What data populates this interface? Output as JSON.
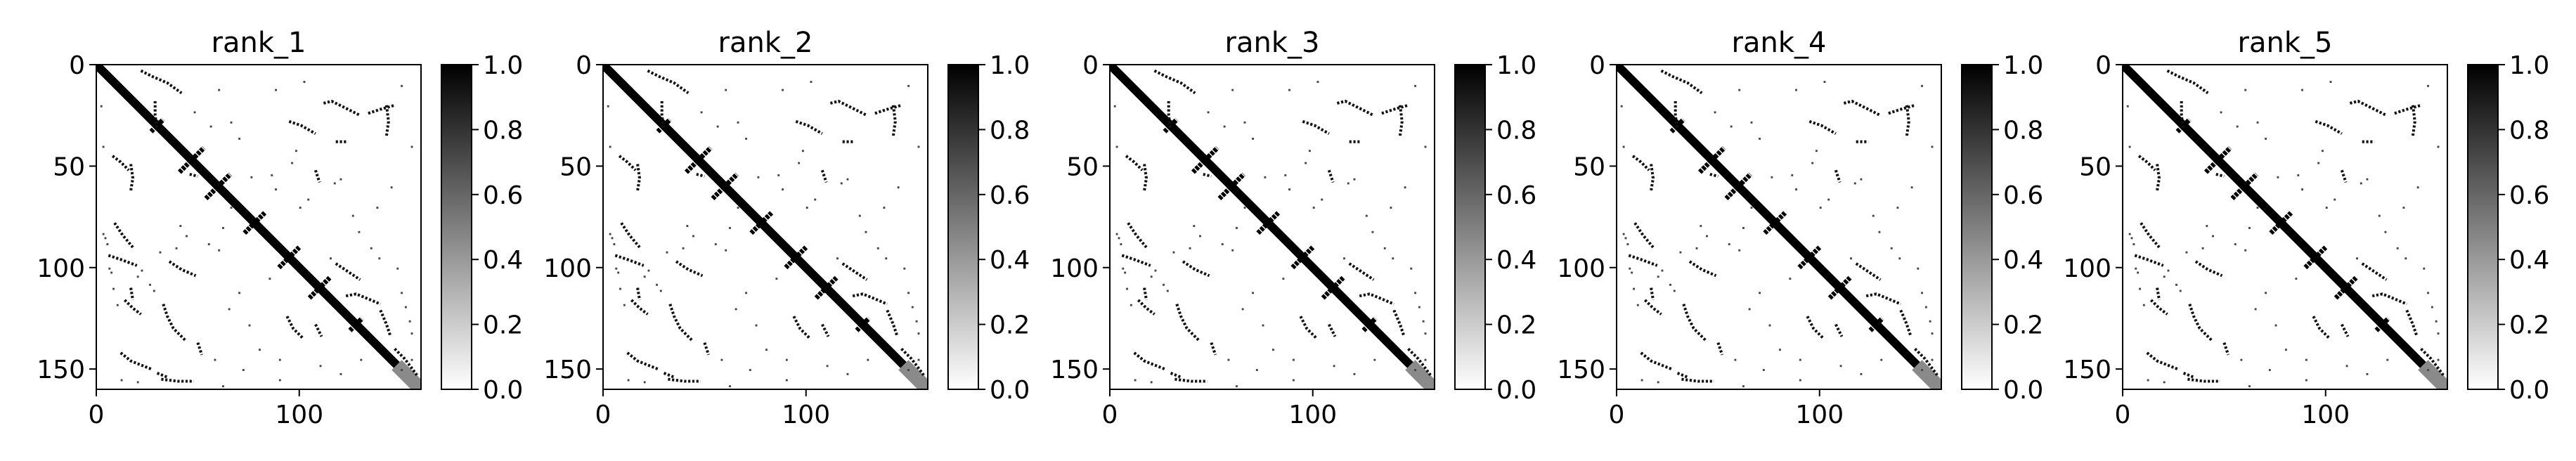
{
  "chart_data": [
    {
      "type": "heatmap",
      "title": "rank_1",
      "matrix_size": 160,
      "xlim": [
        0,
        160
      ],
      "ylim": [
        160,
        0
      ],
      "x_ticks": [
        0,
        100
      ],
      "y_ticks": [
        0,
        50,
        100,
        150
      ],
      "colormap": "gray_r",
      "vmin": 0.0,
      "vmax": 1.0,
      "colorbar_ticks": [
        "0.0",
        "0.2",
        "0.4",
        "0.6",
        "0.8",
        "1.0"
      ]
    },
    {
      "type": "heatmap",
      "title": "rank_2",
      "matrix_size": 160,
      "xlim": [
        0,
        160
      ],
      "ylim": [
        160,
        0
      ],
      "x_ticks": [
        0,
        100
      ],
      "y_ticks": [
        0,
        50,
        100,
        150
      ],
      "colormap": "gray_r",
      "vmin": 0.0,
      "vmax": 1.0,
      "colorbar_ticks": [
        "0.0",
        "0.2",
        "0.4",
        "0.6",
        "0.8",
        "1.0"
      ]
    },
    {
      "type": "heatmap",
      "title": "rank_3",
      "matrix_size": 160,
      "xlim": [
        0,
        160
      ],
      "ylim": [
        160,
        0
      ],
      "x_ticks": [
        0,
        100
      ],
      "y_ticks": [
        0,
        50,
        100,
        150
      ],
      "colormap": "gray_r",
      "vmin": 0.0,
      "vmax": 1.0,
      "colorbar_ticks": [
        "0.0",
        "0.2",
        "0.4",
        "0.6",
        "0.8",
        "1.0"
      ]
    },
    {
      "type": "heatmap",
      "title": "rank_4",
      "matrix_size": 160,
      "xlim": [
        0,
        160
      ],
      "ylim": [
        160,
        0
      ],
      "x_ticks": [
        0,
        100
      ],
      "y_ticks": [
        0,
        50,
        100,
        150
      ],
      "colormap": "gray_r",
      "vmin": 0.0,
      "vmax": 1.0,
      "colorbar_ticks": [
        "0.0",
        "0.2",
        "0.4",
        "0.6",
        "0.8",
        "1.0"
      ]
    },
    {
      "type": "heatmap",
      "title": "rank_5",
      "matrix_size": 160,
      "xlim": [
        0,
        160
      ],
      "ylim": [
        160,
        0
      ],
      "x_ticks": [
        0,
        100
      ],
      "y_ticks": [
        0,
        50,
        100,
        150
      ],
      "colormap": "gray_r",
      "vmin": 0.0,
      "vmax": 1.0,
      "colorbar_ticks": [
        "0.0",
        "0.2",
        "0.4",
        "0.6",
        "0.8",
        "1.0"
      ]
    }
  ],
  "contact_features": {
    "diagonal_band": {
      "from": 0,
      "to": 160
    },
    "antiparallel_arms": [
      {
        "center": 30,
        "length": 6
      },
      {
        "center": 47,
        "length": 12
      },
      {
        "center": 60,
        "length": 12
      },
      {
        "center": 78,
        "length": 10
      },
      {
        "center": 95,
        "length": 10
      },
      {
        "center": 110,
        "length": 10
      },
      {
        "center": 128,
        "length": 6
      }
    ],
    "off_diagonal_paths": [
      [
        [
          22,
          3
        ],
        [
          28,
          6
        ],
        [
          35,
          9
        ],
        [
          42,
          14
        ]
      ],
      [
        [
          29,
          18
        ],
        [
          29,
          25
        ],
        [
          30,
          32
        ]
      ],
      [
        [
          112,
          19
        ],
        [
          116,
          18
        ],
        [
          122,
          21
        ],
        [
          130,
          25
        ]
      ],
      [
        [
          134,
          24
        ],
        [
          140,
          22
        ],
        [
          147,
          20
        ]
      ],
      [
        [
          143,
          20
        ],
        [
          144,
          28
        ],
        [
          143,
          35
        ]
      ],
      [
        [
          95,
          28
        ],
        [
          101,
          30
        ],
        [
          108,
          34
        ]
      ],
      [
        [
          118,
          38
        ],
        [
          124,
          38
        ]
      ],
      [
        [
          8,
          45
        ],
        [
          12,
          48
        ],
        [
          16,
          52
        ]
      ],
      [
        [
          17,
          49
        ],
        [
          18,
          56
        ],
        [
          17,
          62
        ]
      ],
      [
        [
          9,
          78
        ],
        [
          13,
          84
        ],
        [
          18,
          90
        ]
      ],
      [
        [
          108,
          52
        ],
        [
          110,
          58
        ]
      ],
      [
        [
          46,
          54
        ],
        [
          50,
          55
        ]
      ],
      [
        [
          6,
          94
        ],
        [
          12,
          96
        ],
        [
          20,
          99
        ]
      ],
      [
        [
          36,
          97
        ],
        [
          42,
          101
        ],
        [
          49,
          104
        ]
      ],
      [
        [
          14,
          116
        ],
        [
          18,
          120
        ],
        [
          22,
          123
        ]
      ],
      [
        [
          17,
          110
        ],
        [
          18,
          116
        ]
      ],
      [
        [
          33,
          118
        ],
        [
          35,
          124
        ],
        [
          38,
          130
        ],
        [
          44,
          136
        ]
      ],
      [
        [
          12,
          142
        ],
        [
          17,
          146
        ],
        [
          22,
          148
        ],
        [
          27,
          150
        ]
      ],
      [
        [
          50,
          137
        ],
        [
          52,
          143
        ]
      ],
      [
        [
          94,
          124
        ],
        [
          97,
          130
        ],
        [
          102,
          135
        ]
      ],
      [
        [
          108,
          128
        ],
        [
          111,
          134
        ]
      ],
      [
        [
          123,
          114
        ],
        [
          128,
          113
        ],
        [
          133,
          115
        ],
        [
          140,
          118
        ]
      ],
      [
        [
          118,
          98
        ],
        [
          124,
          102
        ],
        [
          130,
          106
        ]
      ],
      [
        [
          140,
          121
        ],
        [
          143,
          128
        ],
        [
          145,
          134
        ]
      ],
      [
        [
          32,
          155
        ],
        [
          40,
          156
        ],
        [
          48,
          156
        ]
      ],
      [
        [
          30,
          152
        ],
        [
          35,
          154
        ]
      ],
      [
        [
          147,
          140
        ],
        [
          152,
          145
        ],
        [
          158,
          153
        ]
      ]
    ],
    "scatter_points": [
      [
        3,
        83
      ],
      [
        4,
        85
      ],
      [
        5,
        88
      ],
      [
        6,
        100
      ],
      [
        7,
        102
      ],
      [
        8,
        110
      ],
      [
        10,
        118
      ],
      [
        20,
        104
      ],
      [
        22,
        101
      ],
      [
        26,
        108
      ],
      [
        28,
        111
      ],
      [
        31,
        92
      ],
      [
        39,
        90
      ],
      [
        41,
        79
      ],
      [
        44,
        84
      ],
      [
        55,
        88
      ],
      [
        60,
        91
      ],
      [
        62,
        80
      ],
      [
        66,
        70
      ],
      [
        76,
        55
      ],
      [
        86,
        54
      ],
      [
        88,
        61
      ],
      [
        100,
        70
      ],
      [
        104,
        66
      ],
      [
        117,
        58
      ],
      [
        120,
        56
      ],
      [
        126,
        74
      ],
      [
        129,
        82
      ],
      [
        135,
        90
      ],
      [
        139,
        95
      ],
      [
        148,
        100
      ],
      [
        150,
        112
      ],
      [
        152,
        119
      ],
      [
        154,
        126
      ],
      [
        155,
        132
      ],
      [
        98,
        42
      ],
      [
        96,
        48
      ],
      [
        70,
        36
      ],
      [
        66,
        28
      ],
      [
        56,
        30
      ],
      [
        48,
        23
      ],
      [
        60,
        12
      ],
      [
        88,
        12
      ],
      [
        102,
        8
      ],
      [
        150,
        10
      ],
      [
        155,
        40
      ],
      [
        145,
        60
      ],
      [
        138,
        70
      ],
      [
        115,
        95
      ],
      [
        85,
        105
      ],
      [
        70,
        112
      ],
      [
        65,
        120
      ],
      [
        75,
        128
      ],
      [
        58,
        145
      ],
      [
        72,
        150
      ],
      [
        90,
        145
      ],
      [
        80,
        140
      ],
      [
        150,
        150
      ],
      [
        155,
        145
      ],
      [
        2,
        20
      ],
      [
        3,
        40
      ],
      [
        12,
        155
      ],
      [
        20,
        156
      ],
      [
        62,
        158
      ],
      [
        90,
        155
      ],
      [
        120,
        152
      ],
      [
        130,
        145
      ],
      [
        110,
        148
      ]
    ]
  }
}
